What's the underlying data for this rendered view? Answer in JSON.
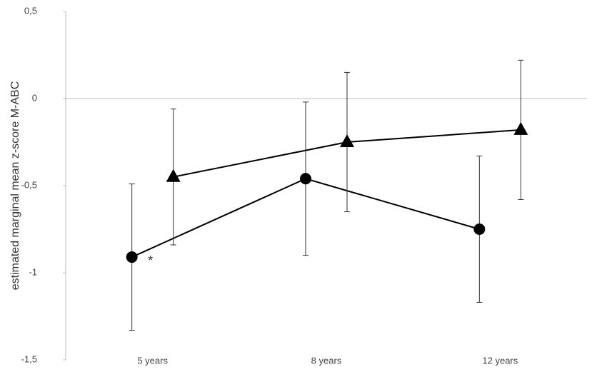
{
  "chart_data": {
    "type": "line",
    "ylabel": "estimated marginal mean z-score M-ABC",
    "categories": [
      "5 years",
      "8 years",
      "12 years"
    ],
    "ylim": [
      -1.5,
      0.5
    ],
    "yticks": [
      {
        "value": -1.5,
        "label": "-1,5"
      },
      -1,
      {
        "value": -0.5,
        "label": "-0,5"
      },
      0,
      {
        "value": 0.5,
        "label": "0,5"
      }
    ],
    "series": [
      {
        "color": "#000000",
        "marker": "circle",
        "values": [
          -0.91,
          -0.46,
          -0.75
        ],
        "errors": [
          0.42,
          0.44,
          0.42
        ]
      },
      {
        "color": "#000000",
        "marker": "triangle",
        "values": [
          -0.45,
          -0.25,
          -0.18
        ],
        "errors": [
          0.39,
          0.4,
          0.4
        ]
      }
    ],
    "annotations": [
      {
        "text": "*",
        "category": 0,
        "series": 0
      }
    ]
  }
}
